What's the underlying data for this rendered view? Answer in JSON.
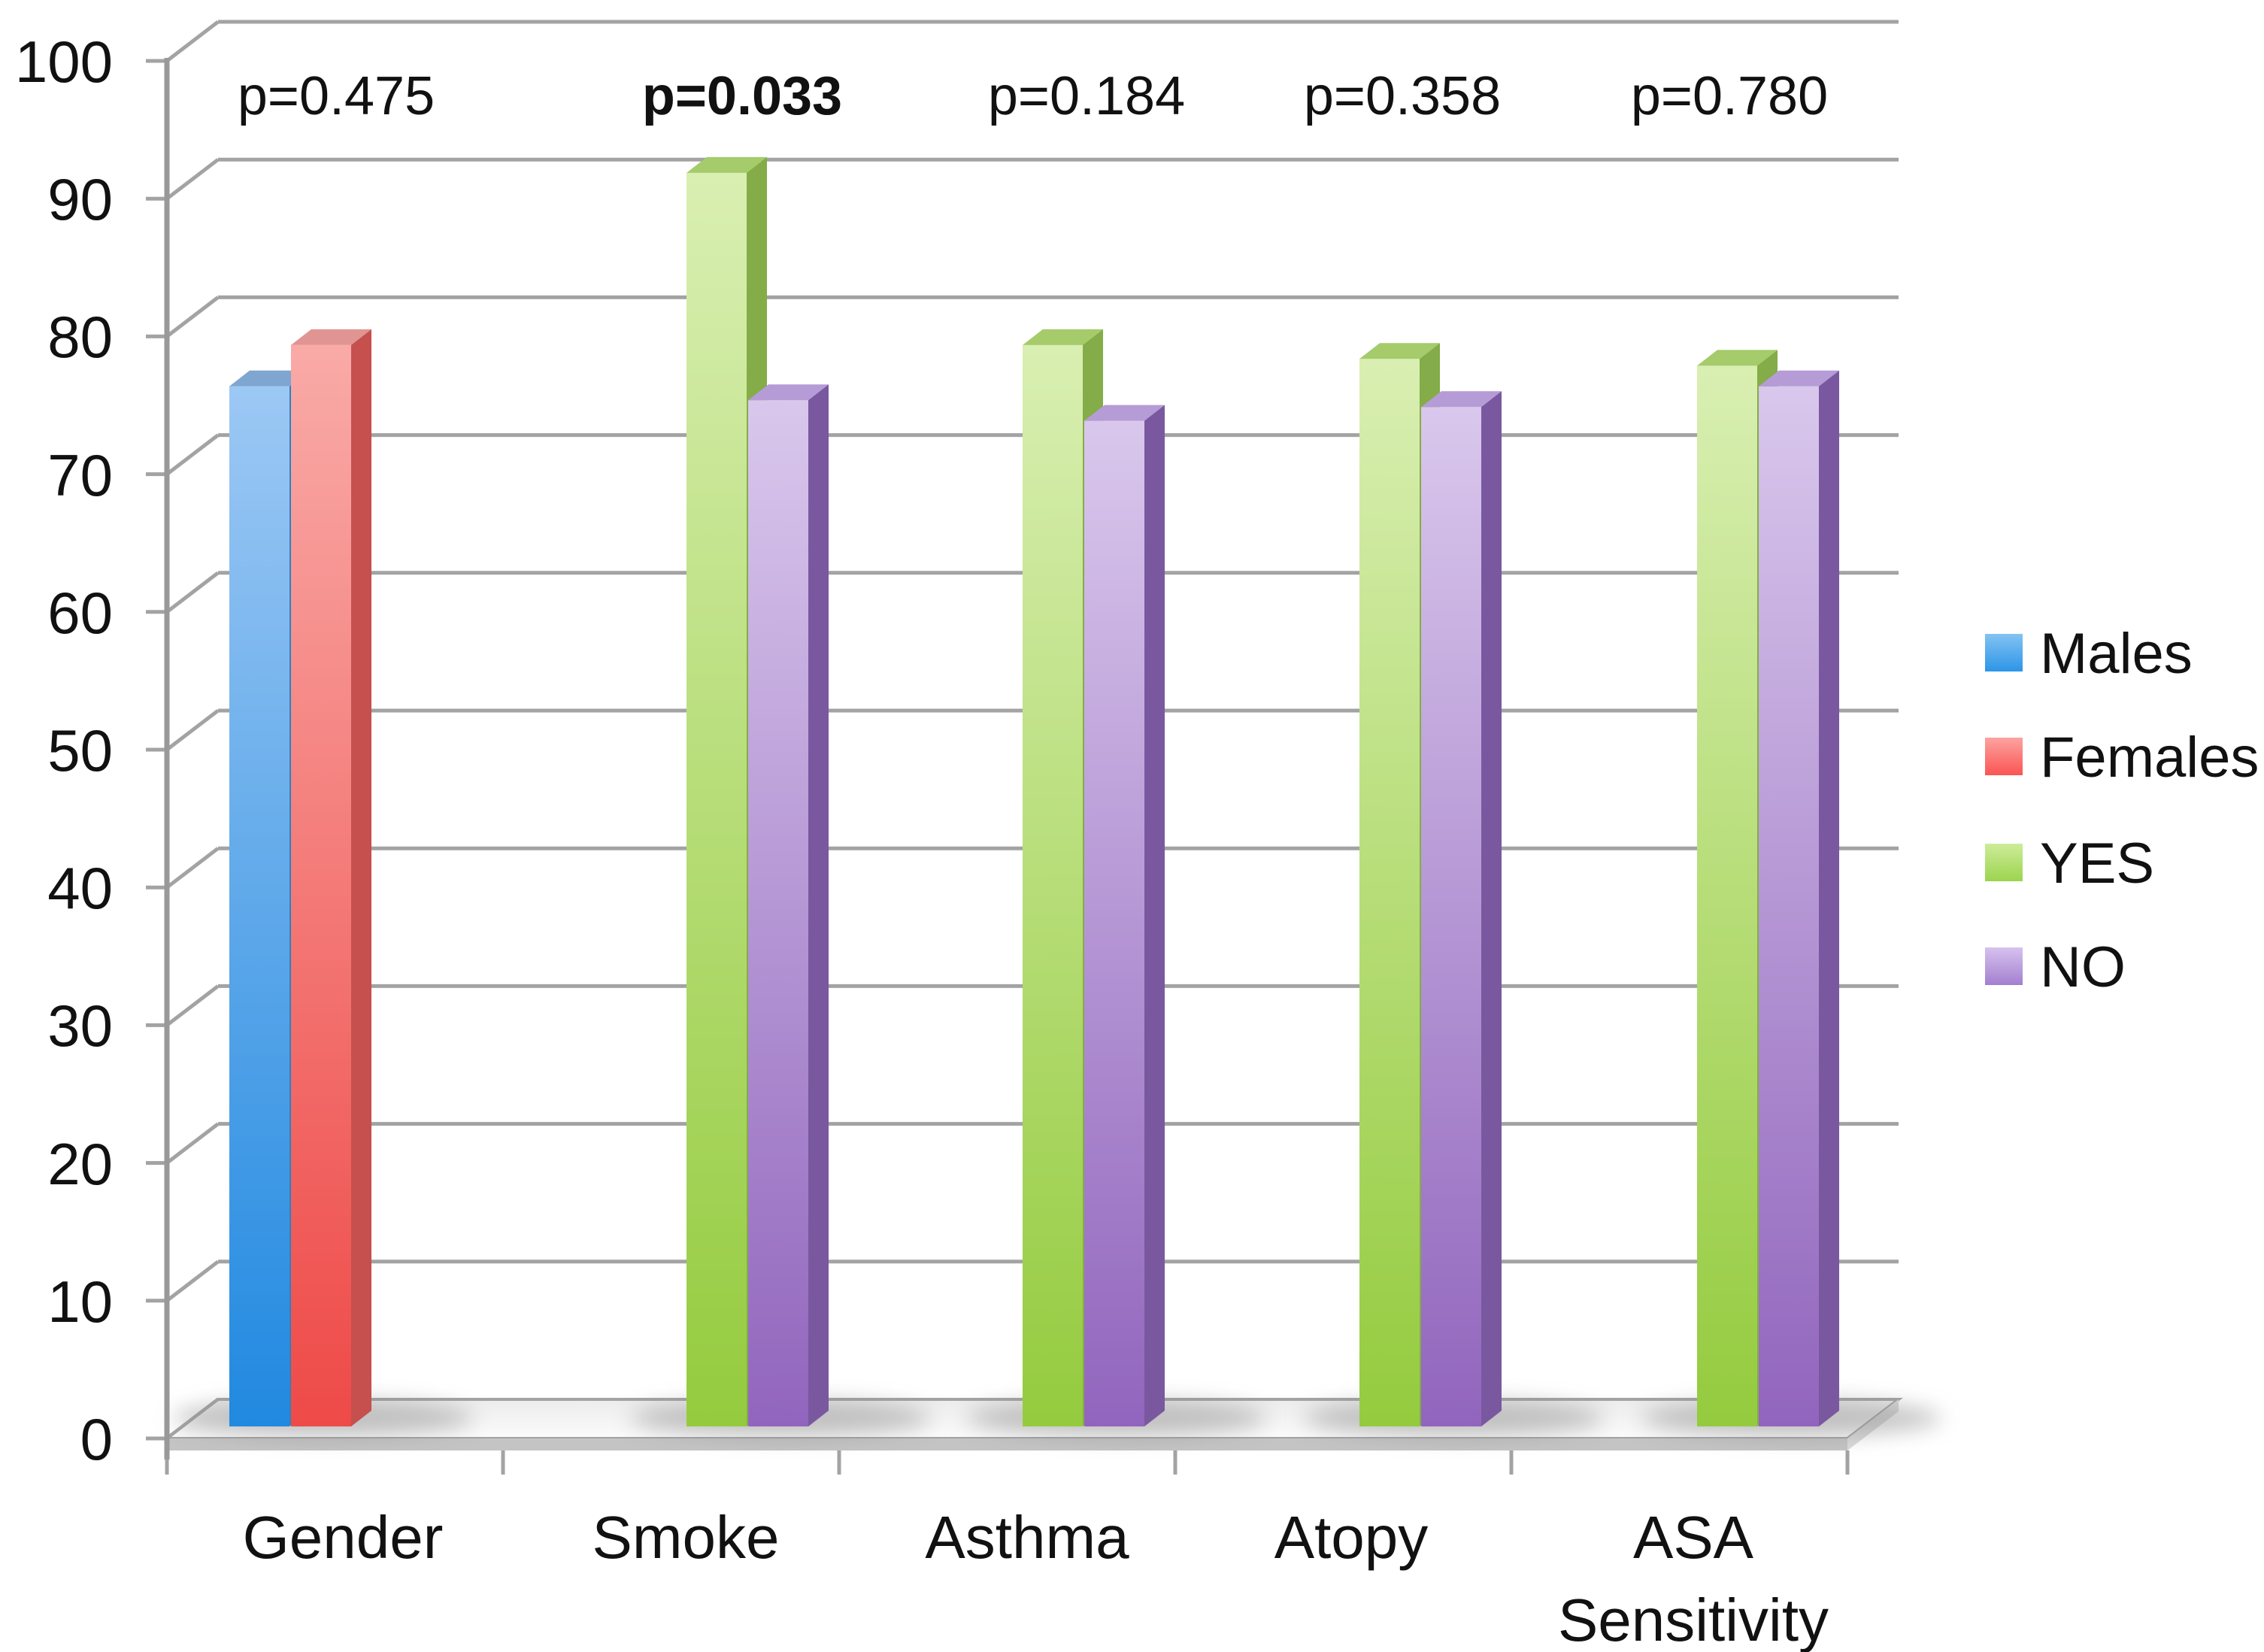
{
  "chart_data": {
    "type": "bar",
    "style": "3d-clustered-column",
    "title": "",
    "xlabel": "",
    "ylabel": "",
    "ylim": [
      0,
      100
    ],
    "ytick_step": 10,
    "ytick_labels": [
      "0",
      "10",
      "20",
      "30",
      "40",
      "50",
      "60",
      "70",
      "80",
      "90",
      "100"
    ],
    "grid": true,
    "legend_position": "right",
    "legend": [
      {
        "label": "Males",
        "color": "#2D95E8"
      },
      {
        "label": "Females",
        "color": "#FA5553"
      },
      {
        "label": "YES",
        "color": "#9CD44E"
      },
      {
        "label": "NO",
        "color": "#A37FD0"
      }
    ],
    "categories": [
      {
        "label": "Gender",
        "label_lines": [
          "Gender"
        ],
        "p_value": "p=0.475",
        "p_bold": false,
        "bars": [
          {
            "series": "Males",
            "value": 75.5
          },
          {
            "series": "Females",
            "value": 78.5
          }
        ]
      },
      {
        "label": "Smoke",
        "label_lines": [
          "Smoke"
        ],
        "p_value": "p=0.033",
        "p_bold": true,
        "bars": [
          {
            "series": "YES",
            "value": 91
          },
          {
            "series": "NO",
            "value": 74.5
          }
        ]
      },
      {
        "label": "Asthma",
        "label_lines": [
          "Asthma"
        ],
        "p_value": "p=0.184",
        "p_bold": false,
        "bars": [
          {
            "series": "YES",
            "value": 78.5
          },
          {
            "series": "NO",
            "value": 73
          }
        ]
      },
      {
        "label": "Atopy",
        "label_lines": [
          "Atopy"
        ],
        "p_value": "p=0.358",
        "p_bold": false,
        "bars": [
          {
            "series": "YES",
            "value": 77.5
          },
          {
            "series": "NO",
            "value": 74
          }
        ]
      },
      {
        "label": "ASA Sensitivity",
        "label_lines": [
          "ASA",
          "Sensitivity"
        ],
        "p_value": "p=0.780",
        "p_bold": false,
        "bars": [
          {
            "series": "YES",
            "value": 77
          },
          {
            "series": "NO",
            "value": 75.5
          }
        ]
      }
    ],
    "series_colors": {
      "Males": {
        "front_top": "#9CC8F4",
        "front_bottom": "#2189E0",
        "top": "#7FA6D0",
        "side": "#3080C0",
        "legend_top": "#83C3F2",
        "legend_bottom": "#2D95E8"
      },
      "Females": {
        "front_top": "#F9AAA7",
        "front_bottom": "#EE4A48",
        "top": "#E09593",
        "side": "#C5504D",
        "legend_top": "#FCA3A0",
        "legend_bottom": "#FA5553"
      },
      "YES": {
        "front_top": "#D9EFB2",
        "front_bottom": "#94CB3E",
        "top": "#A5CB6B",
        "side": "#84AC48",
        "legend_top": "#CDEC9A",
        "legend_bottom": "#9CD44E"
      },
      "NO": {
        "front_top": "#D9C7EC",
        "front_bottom": "#9165BD",
        "top": "#B59CD6",
        "side": "#7A58A0",
        "legend_top": "#D7C2EE",
        "legend_bottom": "#A37FD0"
      }
    },
    "frame_color": "#A3A3A3",
    "text_color": "#111111"
  }
}
